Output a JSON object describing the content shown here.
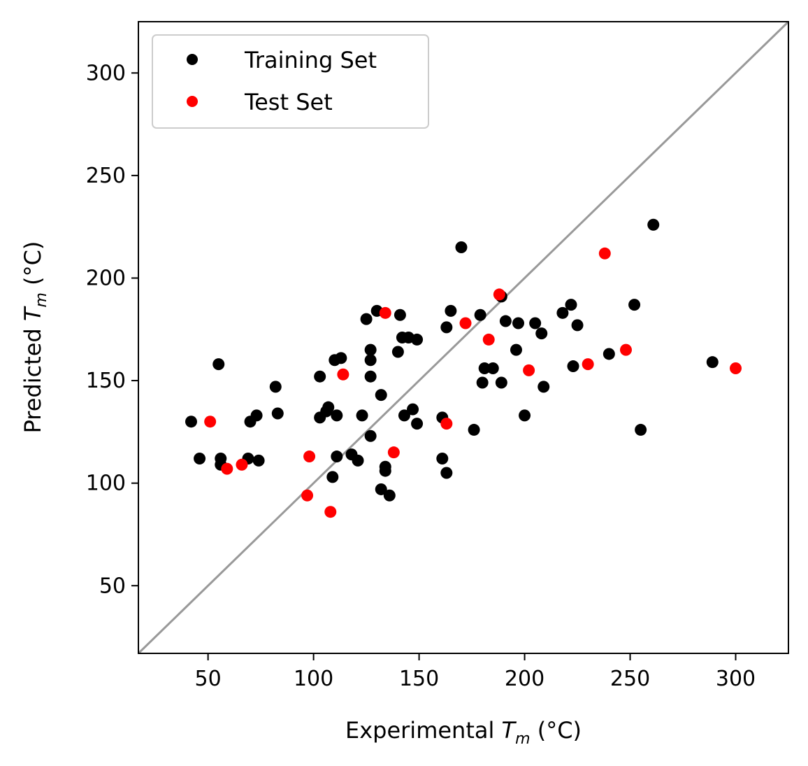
{
  "chart_data": {
    "type": "scatter",
    "xlabel_prefix": "Experimental ",
    "xlabel_symbol": "T",
    "xlabel_sub": "m",
    "xlabel_suffix": " (°C)",
    "ylabel_prefix": "Predicted ",
    "ylabel_symbol": "T",
    "ylabel_sub": "m",
    "ylabel_suffix": " (°C)",
    "xlim": [
      17,
      325
    ],
    "ylim": [
      17,
      325
    ],
    "x_ticks": [
      50,
      100,
      150,
      200,
      250,
      300
    ],
    "y_ticks": [
      50,
      100,
      150,
      200,
      250,
      300
    ],
    "x_tick_labels": [
      "50",
      "100",
      "150",
      "200",
      "250",
      "300"
    ],
    "y_tick_labels": [
      "50",
      "100",
      "150",
      "200",
      "250",
      "300"
    ],
    "grid": false,
    "legend_position": "top-left",
    "reference_line": {
      "type": "y=x",
      "color": "#999999"
    },
    "series": [
      {
        "name": "Training Set",
        "color": "#000000",
        "points": [
          [
            42,
            130
          ],
          [
            46,
            112
          ],
          [
            55,
            158
          ],
          [
            56,
            109
          ],
          [
            56,
            112
          ],
          [
            69,
            112
          ],
          [
            70,
            130
          ],
          [
            73,
            133
          ],
          [
            74,
            111
          ],
          [
            82,
            147
          ],
          [
            83,
            134
          ],
          [
            103,
            152
          ],
          [
            103,
            132
          ],
          [
            106,
            135
          ],
          [
            107,
            137
          ],
          [
            109,
            103
          ],
          [
            110,
            160
          ],
          [
            111,
            133
          ],
          [
            111,
            113
          ],
          [
            113,
            161
          ],
          [
            118,
            114
          ],
          [
            121,
            111
          ],
          [
            123,
            133
          ],
          [
            125,
            180
          ],
          [
            127,
            165
          ],
          [
            127,
            160
          ],
          [
            127,
            152
          ],
          [
            127,
            123
          ],
          [
            130,
            184
          ],
          [
            132,
            143
          ],
          [
            132,
            97
          ],
          [
            134,
            106
          ],
          [
            134,
            108
          ],
          [
            136,
            94
          ],
          [
            140,
            164
          ],
          [
            141,
            182
          ],
          [
            142,
            171
          ],
          [
            143,
            133
          ],
          [
            145,
            171
          ],
          [
            147,
            136
          ],
          [
            149,
            129
          ],
          [
            149,
            170
          ],
          [
            161,
            132
          ],
          [
            161,
            112
          ],
          [
            163,
            176
          ],
          [
            163,
            105
          ],
          [
            165,
            184
          ],
          [
            170,
            215
          ],
          [
            176,
            126
          ],
          [
            179,
            182
          ],
          [
            180,
            149
          ],
          [
            181,
            156
          ],
          [
            185,
            156
          ],
          [
            189,
            191
          ],
          [
            189,
            149
          ],
          [
            191,
            179
          ],
          [
            196,
            165
          ],
          [
            197,
            178
          ],
          [
            200,
            133
          ],
          [
            205,
            178
          ],
          [
            208,
            173
          ],
          [
            209,
            147
          ],
          [
            218,
            183
          ],
          [
            222,
            187
          ],
          [
            223,
            157
          ],
          [
            225,
            177
          ],
          [
            240,
            163
          ],
          [
            252,
            187
          ],
          [
            255,
            126
          ],
          [
            261,
            226
          ],
          [
            289,
            159
          ]
        ]
      },
      {
        "name": "Test Set",
        "color": "#ff0000",
        "points": [
          [
            51,
            130
          ],
          [
            59,
            107
          ],
          [
            66,
            109
          ],
          [
            97,
            94
          ],
          [
            98,
            113
          ],
          [
            108,
            86
          ],
          [
            114,
            153
          ],
          [
            134,
            183
          ],
          [
            138,
            115
          ],
          [
            163,
            129
          ],
          [
            172,
            178
          ],
          [
            183,
            170
          ],
          [
            188,
            192
          ],
          [
            202,
            155
          ],
          [
            230,
            158
          ],
          [
            238,
            212
          ],
          [
            248,
            165
          ],
          [
            300,
            156
          ]
        ]
      }
    ]
  }
}
